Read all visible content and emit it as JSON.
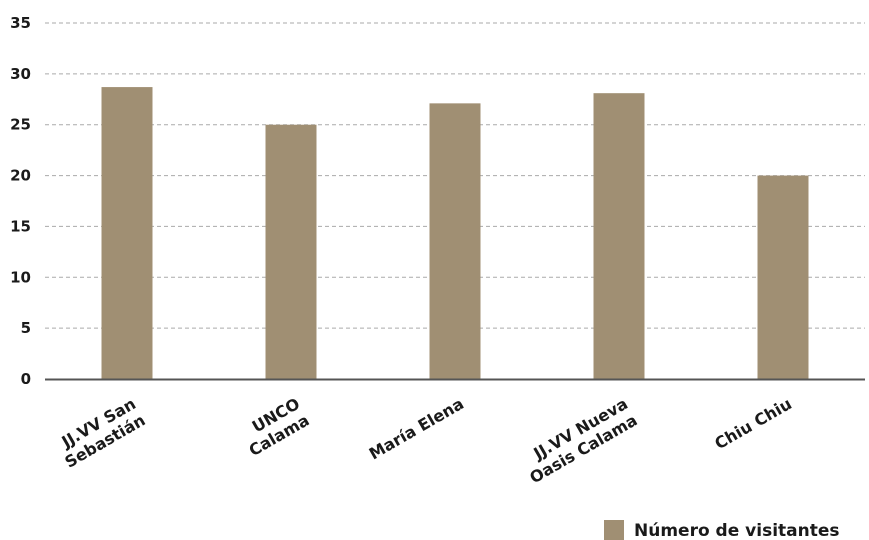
{
  "chart_data": {
    "type": "bar",
    "categories": [
      [
        "JJ.VV San",
        "Sebastián"
      ],
      [
        "UNCO",
        "Calama"
      ],
      [
        "María Elena"
      ],
      [
        "JJ.VV Nueva",
        "Oasis Calama"
      ],
      [
        "Chiu Chiu"
      ]
    ],
    "series": [
      {
        "name": "Número de visitantes",
        "color": "#A08F73",
        "values": [
          28.7,
          25,
          27.1,
          28.1,
          20
        ]
      }
    ],
    "ylim": [
      0,
      35
    ],
    "yticks": [
      0,
      5,
      10,
      15,
      20,
      25,
      30,
      35
    ],
    "grid": true,
    "legend_position": "bottom-right",
    "colors": {
      "bar": "#A08F73",
      "gridline": "#aaaaaa",
      "axis": "#555555",
      "text": "#1a1a1a"
    }
  }
}
